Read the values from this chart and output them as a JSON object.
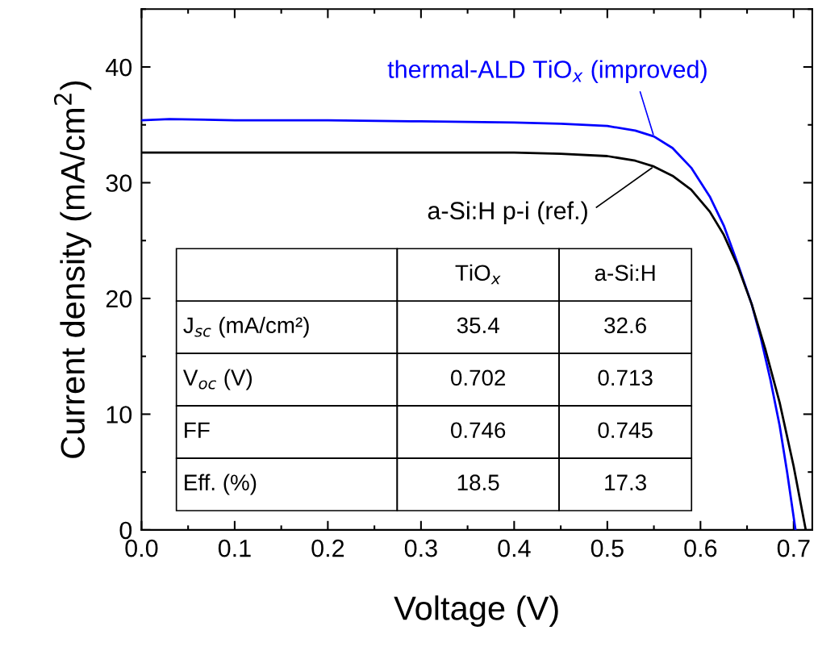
{
  "chart_data": {
    "type": "line",
    "xlabel": "Voltage (V)",
    "ylabel": "Current density (mA/cm$^{2}$)",
    "xlim": [
      0,
      0.72
    ],
    "ylim": [
      0,
      45
    ],
    "xticks": [
      {
        "value": 0,
        "label": "0.0"
      },
      0.1,
      0.2,
      0.3,
      0.4,
      0.5,
      0.6,
      0.7
    ],
    "yticks": [
      0,
      10,
      20,
      30,
      40
    ],
    "grid": false,
    "legend": false,
    "marker": "none",
    "line_style": "solid",
    "series": [
      {
        "name": "thermal-ALD TiO$_{x}$ (improved)",
        "color": "#0000ff",
        "x": [
          0,
          0.03,
          0.1,
          0.2,
          0.3,
          0.4,
          0.45,
          0.5,
          0.53,
          0.55,
          0.57,
          0.59,
          0.61,
          0.625,
          0.64,
          0.655,
          0.665,
          0.675,
          0.685,
          0.693,
          0.702
        ],
        "values": [
          35.4,
          35.5,
          35.4,
          35.4,
          35.3,
          35.2,
          35.1,
          34.9,
          34.5,
          34.0,
          33.0,
          31.3,
          28.8,
          26.3,
          23.0,
          19.5,
          16.5,
          13.0,
          9.0,
          5.0,
          0
        ]
      },
      {
        "name": "a-Si:H p-i (ref.)",
        "color": "#000000",
        "x": [
          0,
          0.1,
          0.2,
          0.3,
          0.4,
          0.45,
          0.5,
          0.53,
          0.55,
          0.57,
          0.59,
          0.61,
          0.625,
          0.64,
          0.655,
          0.67,
          0.685,
          0.7,
          0.713
        ],
        "values": [
          32.6,
          32.6,
          32.6,
          32.6,
          32.6,
          32.5,
          32.3,
          31.9,
          31.4,
          30.6,
          29.4,
          27.5,
          25.5,
          22.8,
          19.5,
          15.5,
          11.0,
          5.5,
          0
        ]
      }
    ],
    "annotations": [
      "TiO$_{x}$",
      "a-Si:H",
      "J$_{sc}$ (mA/cm²)",
      "35.4",
      "32.6",
      "V$_{oc}$ (V)",
      "0.702",
      "0.713",
      "FF",
      "0.746",
      "0.745",
      "Eff. (%)",
      "18.5",
      "17.3"
    ]
  }
}
